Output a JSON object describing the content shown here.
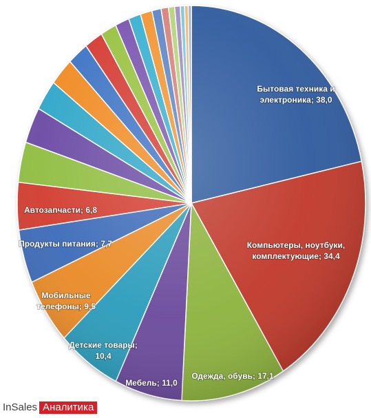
{
  "chart_data": {
    "type": "pie",
    "slices": [
      {
        "label_lines": [
          "Бытовая техника и",
          "электроника; 38,0"
        ],
        "value": 38.0,
        "color": "#2e5a9e"
      },
      {
        "label_lines": [
          "Компьютеры, ноутбуки,",
          "комплектующие; 34,4"
        ],
        "value": 34.4,
        "color": "#c0392b"
      },
      {
        "label_lines": [
          "Одежда, обувь; 17,1"
        ],
        "value": 17.1,
        "color": "#8db33d"
      },
      {
        "label_lines": [
          "Мебель; 11,0"
        ],
        "value": 11.0,
        "color": "#6a4a9c"
      },
      {
        "label_lines": [
          "Детские товары;",
          "10,4"
        ],
        "value": 10.4,
        "color": "#2b9cbb"
      },
      {
        "label_lines": [
          "Мобильные",
          "телефоны; 9,5"
        ],
        "value": 9.5,
        "color": "#ea8a25"
      },
      {
        "label_lines": [
          "Продукты питания; 7,7"
        ],
        "value": 7.7,
        "color": "#3a6ab8"
      },
      {
        "label_lines": [
          "Автозапчасти; 6,8"
        ],
        "value": 6.8,
        "color": "#d23a2d"
      },
      {
        "label_lines": [],
        "value": 5.8,
        "color": "#8fbd3f"
      },
      {
        "label_lines": [],
        "value": 5.2,
        "color": "#6b4aa4"
      },
      {
        "label_lines": [],
        "value": 4.4,
        "color": "#2fa6c8"
      },
      {
        "label_lines": [],
        "value": 4.0,
        "color": "#f08a24"
      },
      {
        "label_lines": [],
        "value": 3.4,
        "color": "#3e73c4"
      },
      {
        "label_lines": [],
        "value": 3.0,
        "color": "#d43b30"
      },
      {
        "label_lines": [],
        "value": 2.6,
        "color": "#98c240"
      },
      {
        "label_lines": [],
        "value": 2.3,
        "color": "#7a54b0"
      },
      {
        "label_lines": [],
        "value": 2.0,
        "color": "#37b0d0"
      },
      {
        "label_lines": [],
        "value": 1.9,
        "color": "#f29530"
      },
      {
        "label_lines": [],
        "value": 1.5,
        "color": "#5d86c8"
      },
      {
        "label_lines": [],
        "value": 1.2,
        "color": "#d9817a"
      },
      {
        "label_lines": [],
        "value": 1.0,
        "color": "#b6d47a"
      },
      {
        "label_lines": [],
        "value": 0.9,
        "color": "#a08cc6"
      },
      {
        "label_lines": [],
        "value": 0.7,
        "color": "#7ec8de"
      },
      {
        "label_lines": [],
        "value": 0.6,
        "color": "#f6b774"
      },
      {
        "label_lines": [],
        "value": 0.5,
        "color": "#93acd8"
      }
    ]
  },
  "branding": {
    "logo_text": "InSales",
    "tag_text": "Аналитика",
    "tag_color": "#d61f26"
  }
}
